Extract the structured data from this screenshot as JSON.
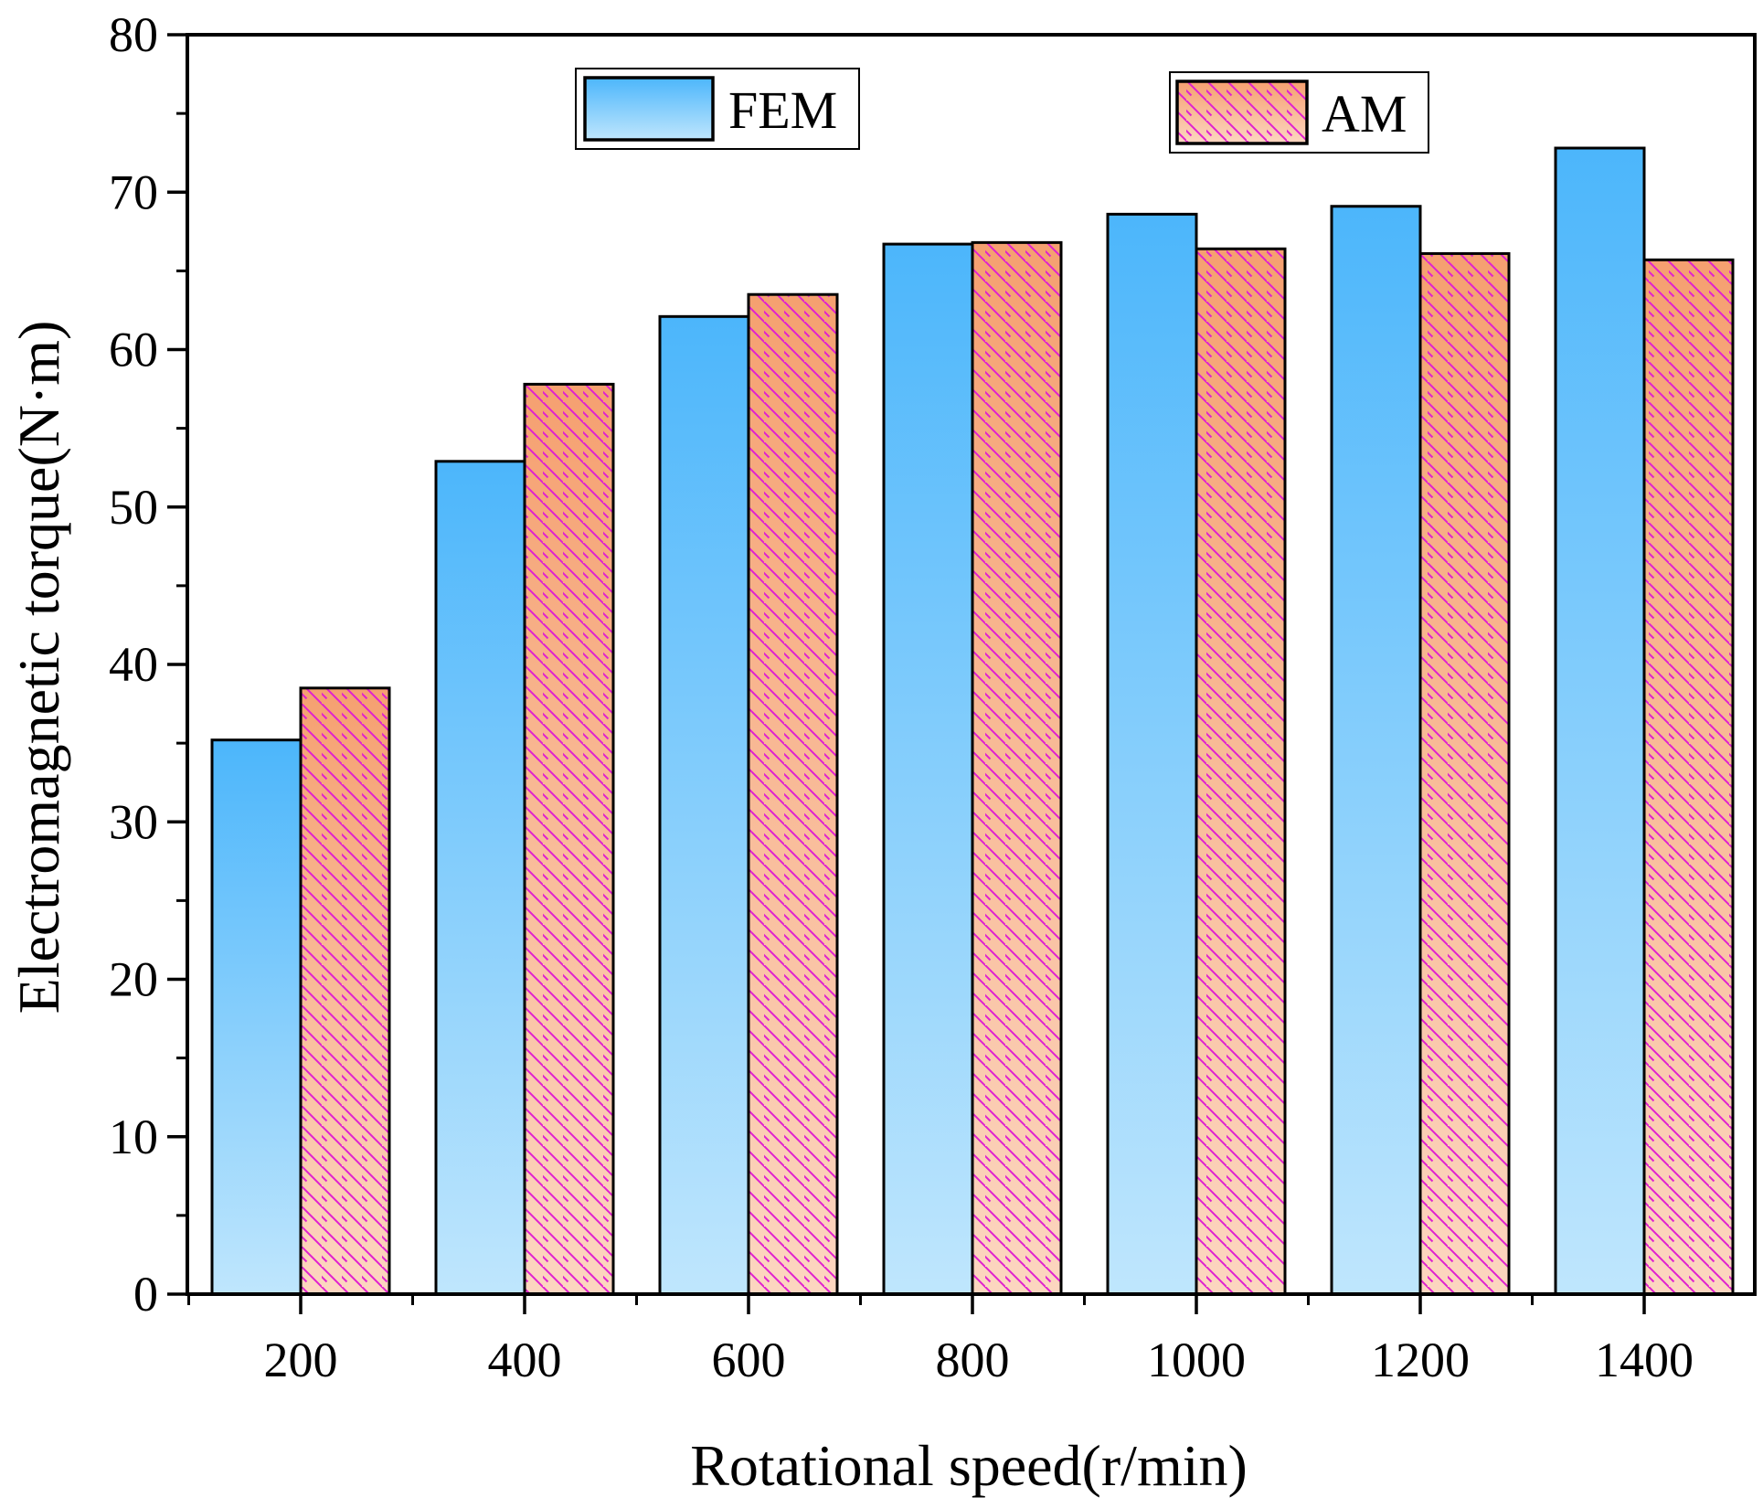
{
  "chart_data": {
    "type": "bar",
    "title": "",
    "xlabel": "Rotational speed(r/min)",
    "ylabel": "Electromagnetic torque(N·m)",
    "categories": [
      "200",
      "400",
      "600",
      "800",
      "1000",
      "1200",
      "1400"
    ],
    "series": [
      {
        "name": "FEM",
        "values": [
          35.2,
          52.9,
          62.1,
          66.7,
          68.6,
          69.1,
          72.8
        ]
      },
      {
        "name": "AM",
        "values": [
          38.5,
          57.8,
          63.5,
          66.8,
          66.4,
          66.1,
          65.7
        ]
      }
    ],
    "ylim": [
      0,
      80
    ],
    "yticks": [
      0,
      10,
      20,
      30,
      40,
      50,
      60,
      70,
      80
    ],
    "grid": false,
    "legend": "top",
    "colors": {
      "fem_top": "#4cb6fb",
      "fem_bottom": "#bfe6fd",
      "am_top": "#f5a070",
      "am_bottom": "#fcd6c0",
      "am_hatch": "#e020d0",
      "outline": "#000000"
    }
  }
}
